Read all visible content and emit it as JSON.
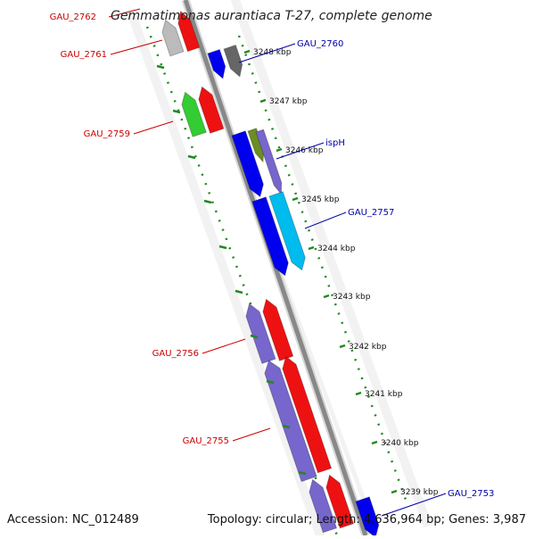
{
  "title": "Gemmatimonas aurantiaca T-27, complete genome",
  "accession": "Accession: NC_012489",
  "topology": "Topology: circular; Length: 4,636,964 bp; Genes: 3,987",
  "colors": {
    "left_label": "#cc0000",
    "right_label": "#0000aa",
    "ticks": "#228822",
    "backbone": "#888888"
  },
  "kbp_labels": [
    "3248 kbp",
    "3247 kbp",
    "3246 kbp",
    "3245 kbp",
    "3244 kbp",
    "3243 kbp",
    "3242 kbp",
    "3241 kbp",
    "3240 kbp",
    "3239 kbp"
  ],
  "left_genes": [
    "GAU_2762",
    "GAU_2761",
    "GAU_2759",
    "GAU_2756",
    "GAU_2755"
  ],
  "right_genes": [
    "GAU_2760",
    "ispH",
    "GAU_2757",
    "GAU_2753"
  ]
}
